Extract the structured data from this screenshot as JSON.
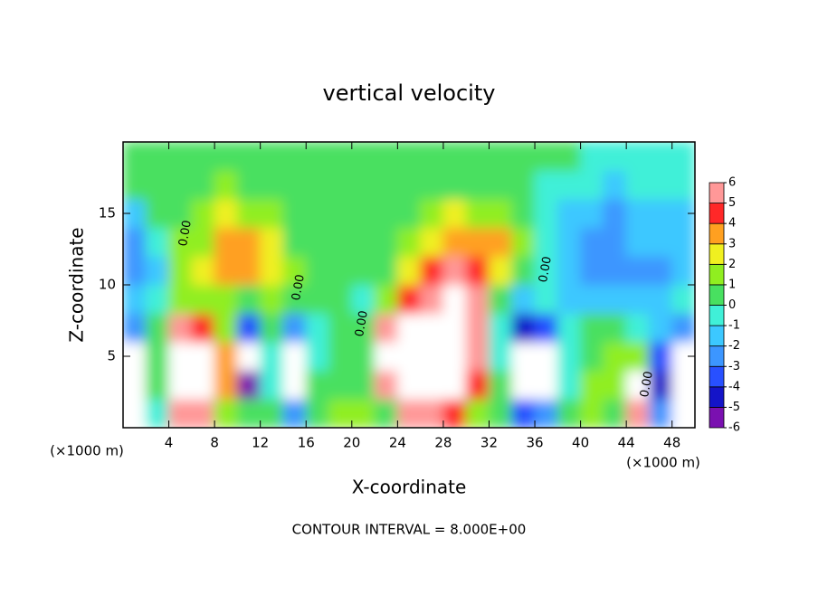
{
  "chart_data": {
    "type": "heatmap",
    "title": "vertical velocity",
    "x_label": "X-coordinate",
    "y_label": "Z-coordinate",
    "x_unit": "(×1000 m)",
    "footer": "CONTOUR INTERVAL = 8.000E+00",
    "contour_label": "0.00",
    "xlim": [
      0,
      50
    ],
    "xticks": [
      4,
      8,
      12,
      16,
      20,
      24,
      28,
      32,
      36,
      40,
      44,
      48
    ],
    "ylim": [
      0,
      20
    ],
    "yticks": [
      5,
      10,
      15
    ],
    "x": [
      1,
      3,
      5,
      7,
      9,
      11,
      13,
      15,
      17,
      19,
      21,
      23,
      25,
      27,
      29,
      31,
      33,
      35,
      37,
      39,
      41,
      43,
      45,
      47,
      49
    ],
    "y": [
      1,
      3,
      5,
      7,
      9,
      11,
      13,
      15,
      17,
      19
    ],
    "values": [
      [
        -7,
        -1,
        5,
        6,
        1,
        0,
        0,
        -3,
        0,
        1,
        1,
        0,
        5,
        6,
        4,
        1,
        0,
        -4,
        -3,
        0,
        1,
        0,
        5,
        -3,
        -7
      ],
      [
        -7,
        0,
        9,
        9,
        3,
        -6,
        -1,
        -7,
        0,
        0,
        0,
        5,
        9,
        9,
        9,
        4,
        0,
        -7,
        -7,
        -1,
        1,
        1,
        7,
        -5,
        -7
      ],
      [
        -7,
        0,
        9,
        9,
        3,
        -7,
        -1,
        -7,
        -1,
        0,
        0,
        7,
        9,
        9,
        9,
        5,
        -1,
        -7,
        -7,
        -1,
        0,
        1,
        1,
        -4,
        -7
      ],
      [
        -3,
        0,
        5,
        4,
        1,
        -4,
        0,
        -3,
        -1,
        0,
        0,
        5,
        9,
        9,
        9,
        6,
        -1,
        -5,
        -4,
        -1,
        0,
        0,
        -1,
        -2,
        -3
      ],
      [
        -2,
        -1,
        1,
        1,
        1,
        0,
        1,
        0,
        0,
        0,
        -1,
        1,
        4,
        6,
        9,
        5,
        0,
        -2,
        -1,
        -2,
        -2,
        -2,
        -2,
        -2,
        -1
      ],
      [
        -3,
        -2,
        1,
        2,
        3,
        3,
        2,
        1,
        0,
        0,
        0,
        0,
        2,
        4,
        5,
        4,
        2,
        0,
        -1,
        -2,
        -3,
        -3,
        -3,
        -3,
        -2
      ],
      [
        -3,
        -1,
        1,
        1,
        3,
        3,
        2,
        0,
        0,
        0,
        0,
        0,
        1,
        2,
        3,
        3,
        3,
        1,
        -1,
        -2,
        -3,
        -3,
        -2,
        -2,
        -2
      ],
      [
        -2,
        0,
        0,
        1,
        2,
        1,
        1,
        0,
        0,
        0,
        0,
        0,
        0,
        1,
        2,
        1,
        1,
        0,
        -1,
        -2,
        -2,
        -3,
        -2,
        -2,
        -2
      ],
      [
        0,
        0,
        0,
        0,
        1,
        0,
        0,
        0,
        0,
        0,
        0,
        0,
        0,
        0,
        0,
        0,
        0,
        0,
        -1,
        -1,
        -1,
        -2,
        -1,
        -1,
        -1
      ],
      [
        0,
        0,
        0,
        0,
        0,
        0,
        0,
        0,
        0,
        0,
        0,
        0,
        0,
        0,
        0,
        0,
        0,
        0,
        0,
        0,
        -1,
        -1,
        -1,
        -1,
        -1
      ]
    ],
    "levels": [
      -6,
      -5,
      -4,
      -3,
      -2,
      -1,
      0,
      1,
      2,
      3,
      4,
      5,
      6
    ],
    "colors": [
      "#7a10b0",
      "#1414c8",
      "#2850ff",
      "#3c96ff",
      "#3cc8ff",
      "#40f0d8",
      "#48e060",
      "#90ee20",
      "#f0f020",
      "#ffa020",
      "#ff2828",
      "#ff9898"
    ],
    "out_of_range_color": "#ffffff"
  }
}
